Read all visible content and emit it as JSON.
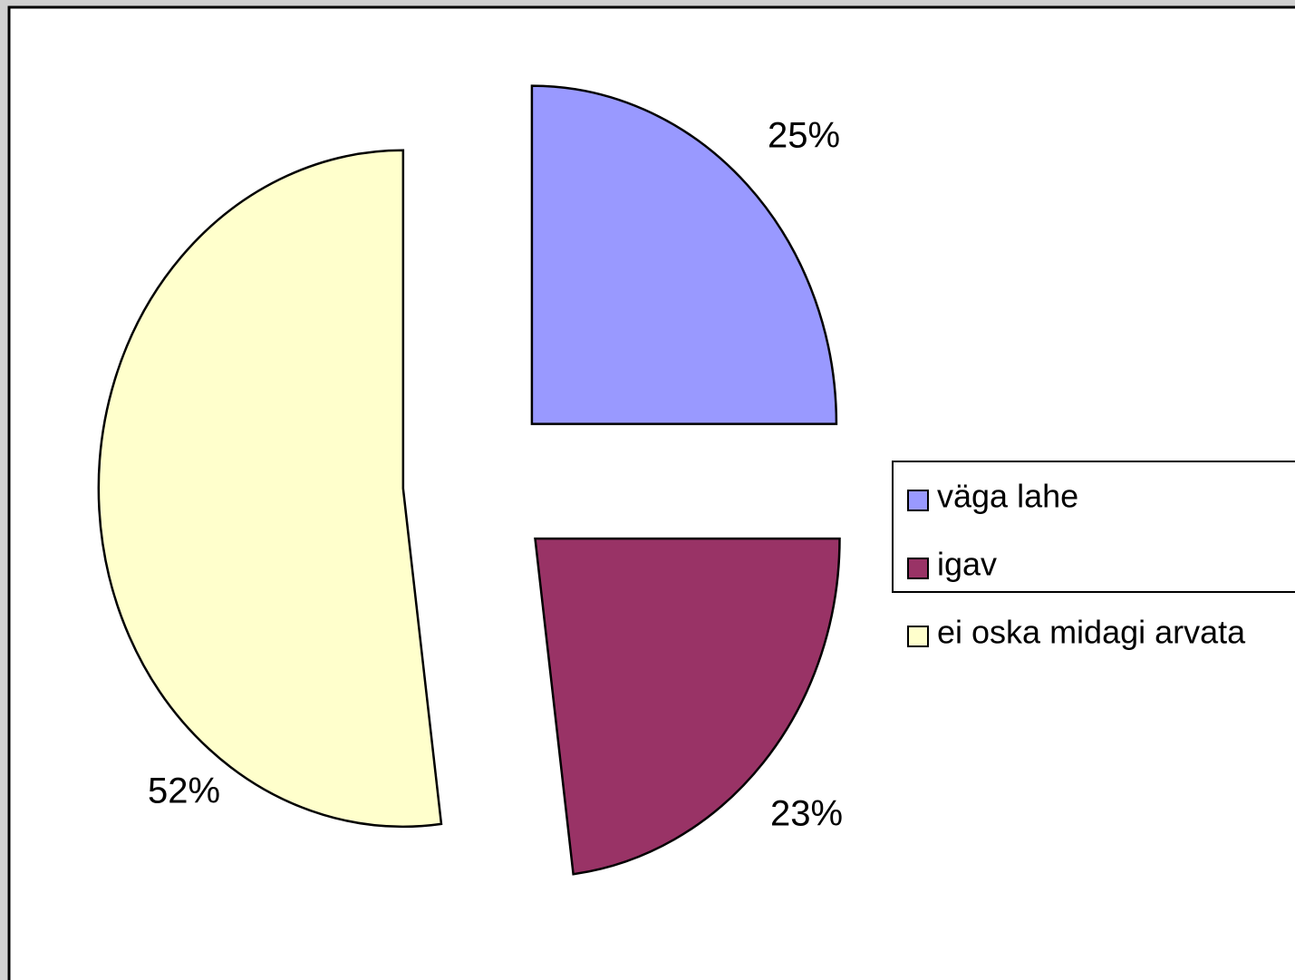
{
  "chart_data": {
    "type": "pie",
    "categories": [
      "väga lahe",
      "igav",
      "ei oska midagi arvata"
    ],
    "values": [
      25,
      23,
      52
    ],
    "value_labels": [
      "25%",
      "23%",
      "52%"
    ],
    "colors": [
      "#9999ff",
      "#993366",
      "#ffffcc"
    ],
    "legend": "right"
  }
}
